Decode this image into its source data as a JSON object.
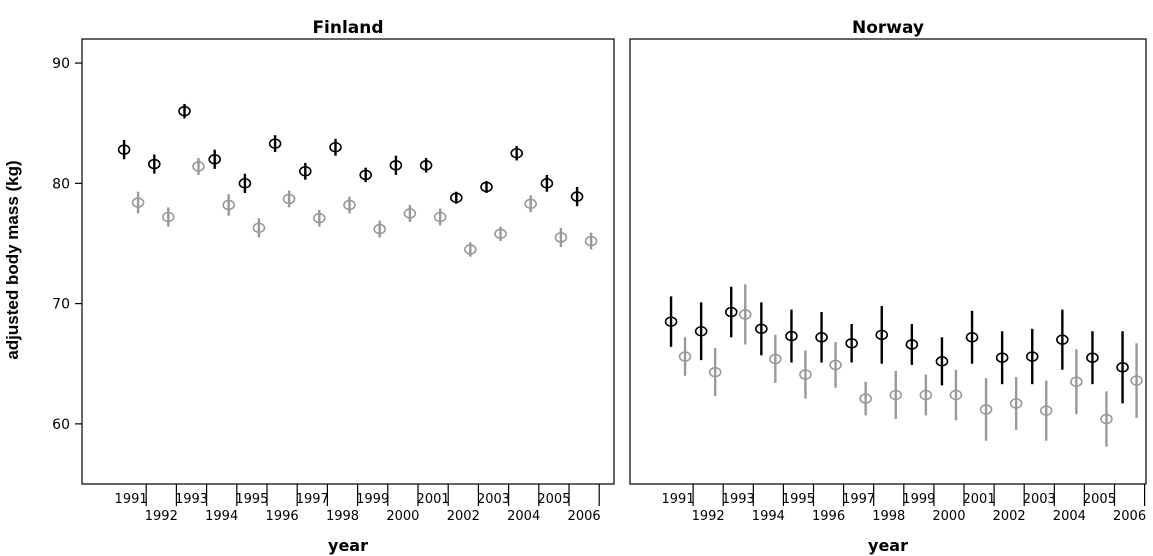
{
  "chart_data": {
    "type": "scatter",
    "ylabel": "adjusted body mass (kg)",
    "xlabel": "year",
    "ylim": [
      55,
      92
    ],
    "yticks": [
      60,
      70,
      80,
      90
    ],
    "x": [
      "1991",
      "1992",
      "1993",
      "1994",
      "1995",
      "1996",
      "1997",
      "1998",
      "1999",
      "2000",
      "2001",
      "2002",
      "2003",
      "2004",
      "2005",
      "2006"
    ],
    "series_colors": [
      "#000000",
      "#999999"
    ],
    "panels": [
      {
        "title": "Finland",
        "series": [
          {
            "mean": [
              82.8,
              81.6,
              86.0,
              82.0,
              80.0,
              83.3,
              81.0,
              83.0,
              80.7,
              81.5,
              81.5,
              78.8,
              79.7,
              82.5,
              80.0,
              78.9
            ],
            "error": [
              0.8,
              0.8,
              0.6,
              0.8,
              0.8,
              0.7,
              0.7,
              0.7,
              0.6,
              0.8,
              0.6,
              0.5,
              0.5,
              0.6,
              0.7,
              0.8
            ]
          },
          {
            "mean": [
              78.4,
              77.2,
              81.4,
              78.2,
              76.3,
              78.7,
              77.1,
              78.2,
              76.2,
              77.5,
              77.2,
              74.5,
              75.8,
              78.3,
              75.5,
              75.2
            ],
            "error": [
              0.9,
              0.8,
              0.7,
              0.9,
              0.8,
              0.7,
              0.7,
              0.7,
              0.7,
              0.7,
              0.7,
              0.6,
              0.6,
              0.7,
              0.8,
              0.7
            ]
          }
        ]
      },
      {
        "title": "Norway",
        "series": [
          {
            "mean": [
              68.5,
              67.7,
              69.3,
              67.9,
              67.3,
              67.2,
              66.7,
              67.4,
              66.6,
              65.2,
              67.2,
              65.5,
              65.6,
              67.0,
              65.5,
              64.7
            ],
            "error": [
              2.1,
              2.4,
              2.1,
              2.2,
              2.2,
              2.1,
              1.6,
              2.4,
              1.7,
              2.0,
              2.2,
              2.2,
              2.3,
              2.5,
              2.2,
              3.0
            ]
          },
          {
            "mean": [
              65.6,
              64.3,
              69.1,
              65.4,
              64.1,
              64.9,
              62.1,
              62.4,
              62.4,
              62.4,
              61.2,
              61.7,
              61.1,
              63.5,
              60.4,
              63.6
            ],
            "error": [
              1.6,
              2.0,
              2.5,
              2.0,
              2.0,
              1.9,
              1.4,
              2.0,
              1.7,
              2.1,
              2.6,
              2.2,
              2.5,
              2.7,
              2.3,
              3.1
            ]
          }
        ]
      }
    ]
  }
}
